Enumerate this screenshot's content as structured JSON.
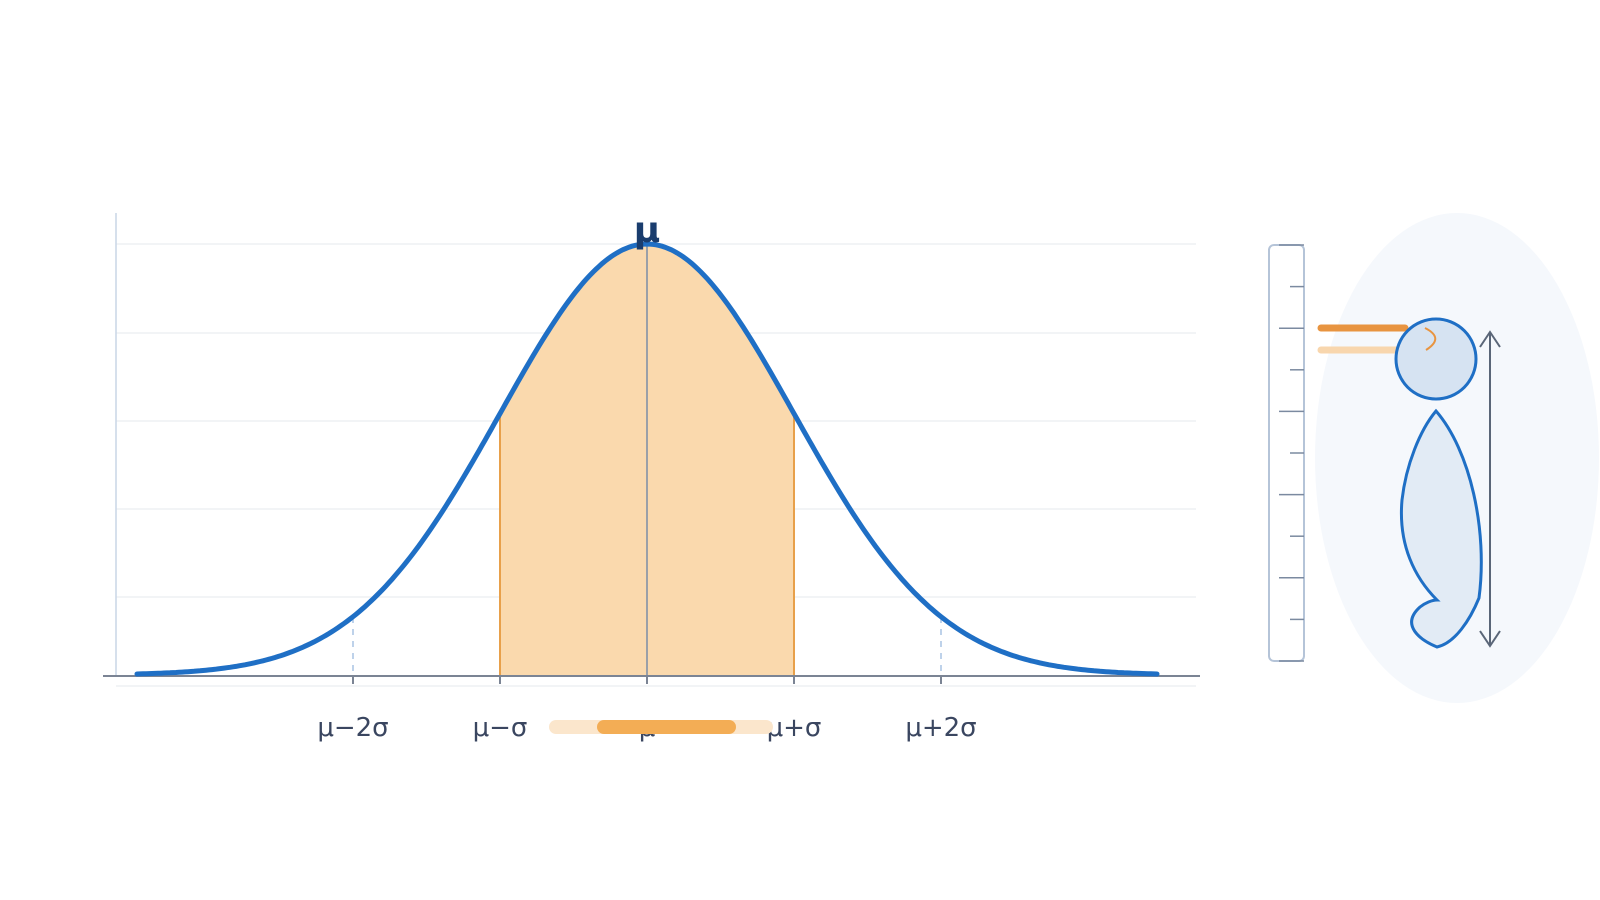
{
  "peak_label": "μ",
  "axis_labels": [
    "μ−2σ",
    "μ−σ",
    "μ",
    "μ+σ",
    "μ+2σ"
  ]
}
